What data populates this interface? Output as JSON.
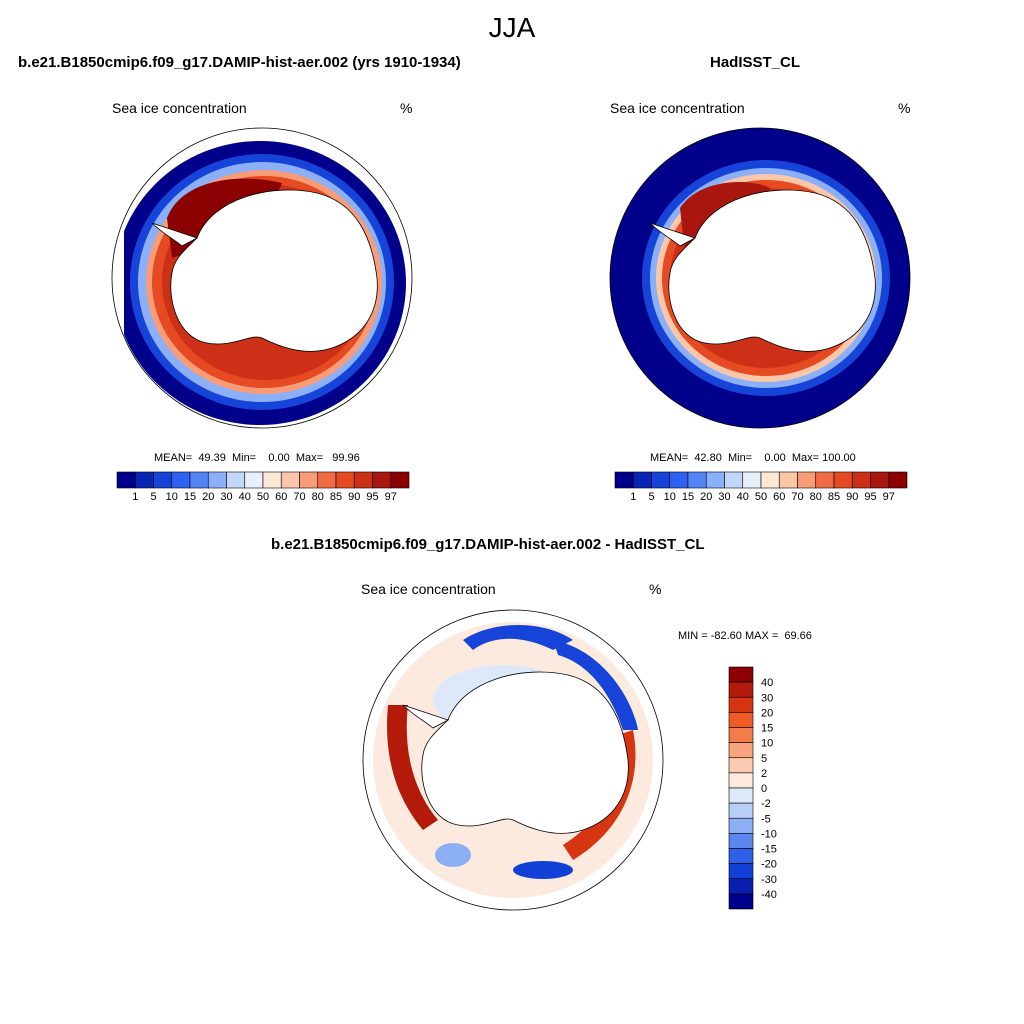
{
  "main_title": "JJA",
  "panels": [
    {
      "title": "b.e21.B1850cmip6.f09_g17.DAMIP-hist-aer.002 (yrs 1910-1934)",
      "variable": "Sea ice concentration",
      "unit": "%",
      "stats": "MEAN=  49.39  Min=    0.00  Max=   99.96"
    },
    {
      "title": "HadISST_CL",
      "variable": "Sea ice concentration",
      "unit": "%",
      "stats": "MEAN=  42.80  Min=    0.00  Max= 100.00"
    },
    {
      "title": "b.e21.B1850cmip6.f09_g17.DAMIP-hist-aer.002 - HadISST_CL",
      "variable": "Sea ice concentration",
      "unit": "%",
      "stats": "MIN = -82.60 MAX =  69.66"
    }
  ],
  "chart_data": [
    {
      "type": "heatmap",
      "projection": "south polar stereographic",
      "title": "b.e21.B1850cmip6.f09_g17.DAMIP-hist-aer.002 (yrs 1910-1934)",
      "variable": "Sea ice concentration",
      "unit": "%",
      "mean": 49.39,
      "min": 0.0,
      "max": 99.96,
      "colorbar_levels": [
        "1",
        "5",
        "10",
        "15",
        "20",
        "30",
        "40",
        "50",
        "60",
        "70",
        "80",
        "85",
        "90",
        "95",
        "97"
      ],
      "colorbar_colors": [
        "#00008b",
        "#0a24b4",
        "#1744d8",
        "#2f62f0",
        "#5585f5",
        "#8cb0f7",
        "#c2d8fa",
        "#e8f1fb",
        "#fde8d8",
        "#fcc6a8",
        "#f89c77",
        "#f26a43",
        "#e54a22",
        "#cc3016",
        "#a9160d",
        "#8b0000"
      ],
      "colorbar_orientation": "horizontal"
    },
    {
      "type": "heatmap",
      "projection": "south polar stereographic",
      "title": "HadISST_CL",
      "variable": "Sea ice concentration",
      "unit": "%",
      "mean": 42.8,
      "min": 0.0,
      "max": 100.0,
      "colorbar_levels": [
        "1",
        "5",
        "10",
        "15",
        "20",
        "30",
        "40",
        "50",
        "60",
        "70",
        "80",
        "85",
        "90",
        "95",
        "97"
      ],
      "colorbar_colors": [
        "#00008b",
        "#0a24b4",
        "#1744d8",
        "#2f62f0",
        "#5585f5",
        "#8cb0f7",
        "#c2d8fa",
        "#e8f1fb",
        "#fde8d8",
        "#fcc6a8",
        "#f89c77",
        "#f26a43",
        "#e54a22",
        "#cc3016",
        "#a9160d",
        "#8b0000"
      ],
      "colorbar_orientation": "horizontal"
    },
    {
      "type": "heatmap",
      "projection": "south polar stereographic",
      "title": "b.e21.B1850cmip6.f09_g17.DAMIP-hist-aer.002 - HadISST_CL",
      "variable": "Sea ice concentration",
      "unit": "%",
      "min": -82.6,
      "max": 69.66,
      "colorbar_levels": [
        "40",
        "30",
        "20",
        "15",
        "10",
        "5",
        "2",
        "0",
        "-2",
        "-5",
        "-10",
        "-15",
        "-20",
        "-30",
        "-40"
      ],
      "colorbar_colors": [
        "#8b0000",
        "#b31a0a",
        "#d63512",
        "#f05a24",
        "#f47c4a",
        "#f9a47c",
        "#fccab0",
        "#fdeadf",
        "#dde9f9",
        "#b7cff6",
        "#8caef3",
        "#5b86ee",
        "#2f60e8",
        "#1040d6",
        "#0a1fb0",
        "#00008b"
      ],
      "colorbar_orientation": "vertical"
    }
  ]
}
